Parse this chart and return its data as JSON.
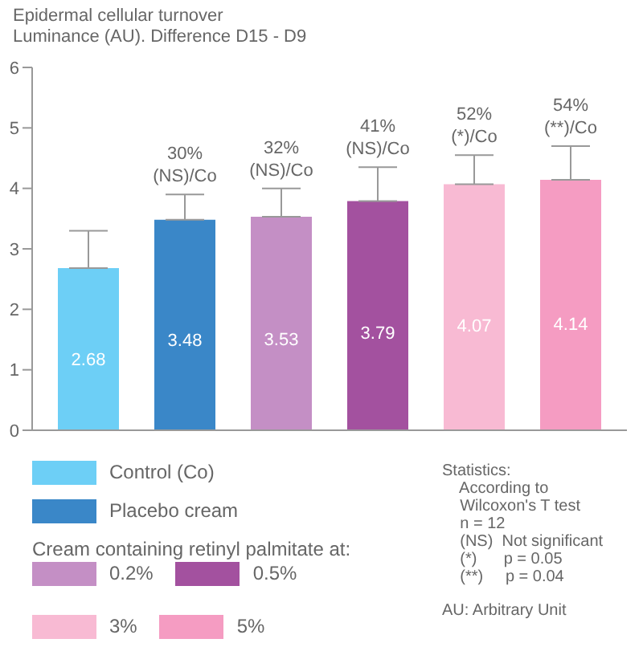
{
  "chart_data": {
    "type": "bar",
    "title": "Epidermal cellular turnover",
    "subtitle": "Luminance (AU). Difference D15 - D9",
    "categories": [
      null
    ],
    "series": [
      {
        "name": "Control (Co)",
        "color": "#6dcff6",
        "values": [
          2.68
        ],
        "errors": [
          [
            2.68,
            3.3
          ]
        ]
      },
      {
        "name": "Placebo cream",
        "color": "#3a87c8",
        "values": [
          3.48
        ],
        "errors": [
          [
            3.48,
            3.9
          ]
        ]
      },
      {
        "name": "0.2%",
        "color": "#c48fc5",
        "values": [
          3.53
        ],
        "errors": [
          [
            3.53,
            4.0
          ]
        ]
      },
      {
        "name": "0.5%",
        "color": "#a3519f",
        "values": [
          3.79
        ],
        "errors": [
          [
            3.79,
            4.35
          ]
        ]
      },
      {
        "name": "3%",
        "color": "#f8bad3",
        "values": [
          4.07
        ],
        "errors": [
          [
            4.07,
            4.55
          ]
        ]
      },
      {
        "name": "5%",
        "color": "#f59cc2",
        "values": [
          4.14
        ],
        "errors": [
          [
            4.14,
            4.7
          ]
        ]
      }
    ],
    "data_labels": true,
    "ylim": [
      0,
      6
    ],
    "yticks": [
      0,
      1,
      2,
      3,
      4,
      5,
      6
    ],
    "grid": false,
    "tick_labels": "y",
    "legend": "bottom",
    "annotations": [
      {
        "text": "30%\n(NS)/Co",
        "y": 3.48
      },
      {
        "text": "32%\n(NS)/Co",
        "y": 3.53
      },
      {
        "text": "41%\n(NS)/Co",
        "y": 3.79
      },
      {
        "text": "52%\n(*)/Co",
        "y": 4.07
      },
      {
        "text": "54%\n(**)/Co",
        "y": 4.14
      },
      "Cream containing retinyl palmitate at:",
      "Statistics:\n    According to\n    Wilcoxon's T test\n    n = 12\n    (NS)  Not significant\n    (*)      p = 0.05\n    (**)     p = 0.04",
      "AU: Arbitrary Unit"
    ]
  }
}
